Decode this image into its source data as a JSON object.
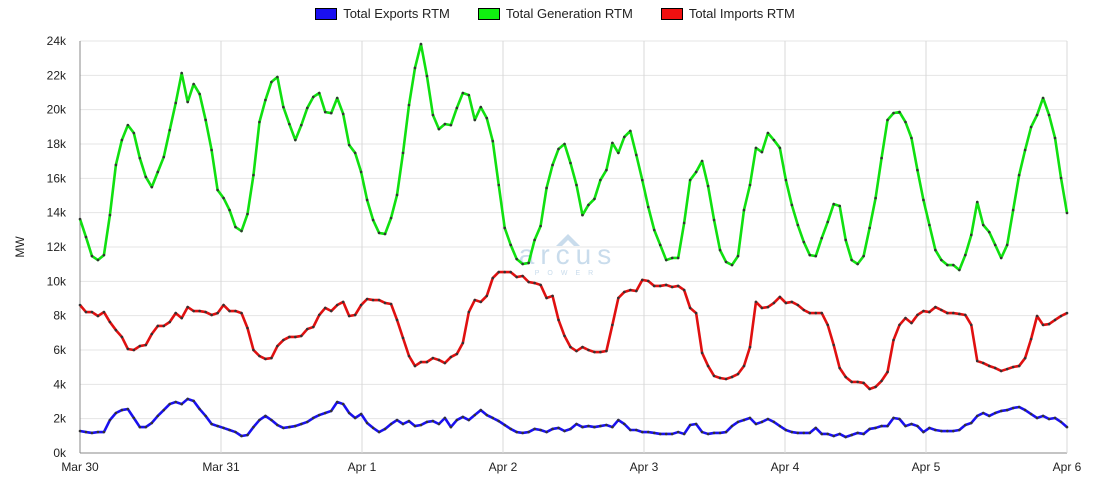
{
  "chart_data": {
    "type": "line",
    "title": "",
    "xlabel": "",
    "ylabel": "MW",
    "ylim": [
      0,
      24000
    ],
    "xlim_hours": [
      0,
      168
    ],
    "y_ticks": [
      "0k",
      "2k",
      "4k",
      "6k",
      "8k",
      "10k",
      "12k",
      "14k",
      "16k",
      "18k",
      "20k",
      "22k",
      "24k"
    ],
    "x_ticks": [
      "Mar 30",
      "Mar 31",
      "Apr 1",
      "Apr 2",
      "Apr 3",
      "Apr 4",
      "Apr 5",
      "Apr 6"
    ],
    "grid": true,
    "legend_position": "top-center",
    "x_interval": "hourly",
    "series": [
      {
        "name": "Total Exports RTM",
        "color": "#1a10f0",
        "values": [
          1280,
          1220,
          1170,
          1220,
          1220,
          1920,
          2330,
          2500,
          2560,
          2040,
          1510,
          1510,
          1750,
          2160,
          2500,
          2850,
          2970,
          2850,
          3150,
          3030,
          2560,
          2160,
          1690,
          1570,
          1460,
          1340,
          1220,
          990,
          1050,
          1510,
          1920,
          2160,
          1920,
          1630,
          1460,
          1510,
          1570,
          1690,
          1810,
          2040,
          2210,
          2330,
          2450,
          2970,
          2850,
          2330,
          2040,
          2270,
          1750,
          1460,
          1220,
          1400,
          1690,
          1920,
          1690,
          1860,
          1570,
          1630,
          1810,
          1860,
          1690,
          2040,
          1510,
          1920,
          2100,
          1920,
          2210,
          2500,
          2210,
          2040,
          1860,
          1630,
          1400,
          1220,
          1170,
          1220,
          1400,
          1340,
          1220,
          1400,
          1460,
          1280,
          1400,
          1690,
          1510,
          1570,
          1510,
          1570,
          1630,
          1510,
          1920,
          1690,
          1340,
          1340,
          1220,
          1220,
          1170,
          1110,
          1110,
          1110,
          1220,
          1110,
          1630,
          1690,
          1220,
          1110,
          1170,
          1170,
          1220,
          1570,
          1810,
          1920,
          2040,
          1690,
          1810,
          1980,
          1810,
          1570,
          1340,
          1220,
          1170,
          1170,
          1170,
          1460,
          1110,
          1110,
          990,
          1110,
          930,
          1050,
          1170,
          1110,
          1400,
          1460,
          1570,
          1570,
          2040,
          1980,
          1570,
          1690,
          1570,
          1220,
          1460,
          1340,
          1280,
          1280,
          1280,
          1340,
          1630,
          1750,
          2160,
          2330,
          2160,
          2330,
          2450,
          2500,
          2620,
          2680,
          2500,
          2270,
          2040,
          2160,
          1980,
          2040,
          1810,
          1510
        ]
      },
      {
        "name": "Total Generation RTM",
        "color": "#10e010",
        "values": [
          13630,
          12580,
          11470,
          11240,
          11530,
          13860,
          16780,
          18230,
          19100,
          18640,
          17180,
          16080,
          15490,
          16370,
          17240,
          18810,
          20390,
          22130,
          20450,
          21490,
          20910,
          19400,
          17650,
          15320,
          14850,
          14150,
          13160,
          12930,
          13920,
          16190,
          19280,
          20560,
          21610,
          21900,
          20150,
          19160,
          18230,
          19100,
          20100,
          20740,
          20970,
          19860,
          19800,
          20680,
          19750,
          17940,
          17480,
          16370,
          14740,
          13570,
          12820,
          12760,
          13690,
          15030,
          17480,
          20270,
          22430,
          23820,
          21960,
          19690,
          18870,
          19160,
          19100,
          20100,
          20970,
          20850,
          19400,
          20150,
          19510,
          18170,
          15610,
          13110,
          12120,
          11300,
          11010,
          11070,
          12410,
          13220,
          15440,
          16780,
          17710,
          18000,
          16890,
          15610,
          13860,
          14450,
          14800,
          15900,
          16480,
          18060,
          17480,
          18410,
          18760,
          17360,
          15900,
          14330,
          12990,
          12120,
          11240,
          11360,
          11360,
          13400,
          15900,
          16370,
          17010,
          15550,
          13570,
          11820,
          11130,
          10950,
          11470,
          14150,
          15610,
          17770,
          17530,
          18640,
          18230,
          17770,
          15900,
          14450,
          13280,
          12290,
          11530,
          11470,
          12520,
          13460,
          14500,
          14390,
          12410,
          11240,
          11010,
          11470,
          13110,
          14850,
          17180,
          19400,
          19800,
          19860,
          19280,
          18350,
          16480,
          14740,
          13280,
          11820,
          11240,
          10950,
          10950,
          10660,
          11530,
          12700,
          14620,
          13280,
          12870,
          12120,
          11360,
          12120,
          14150,
          16190,
          17650,
          18990,
          19690,
          20680,
          19690,
          18350,
          16020,
          13980
        ]
      },
      {
        "name": "Total Imports RTM",
        "color": "#e01010",
        "values": [
          8620,
          8210,
          8210,
          7980,
          8210,
          7630,
          7160,
          6760,
          6060,
          6000,
          6230,
          6290,
          6930,
          7400,
          7400,
          7630,
          8150,
          7860,
          8500,
          8270,
          8270,
          8210,
          8040,
          8150,
          8620,
          8270,
          8270,
          8150,
          7280,
          6000,
          5650,
          5480,
          5530,
          6230,
          6580,
          6760,
          6760,
          6820,
          7220,
          7340,
          8040,
          8450,
          8270,
          8620,
          8800,
          7980,
          8040,
          8620,
          8970,
          8910,
          8910,
          8740,
          8680,
          7750,
          6700,
          5650,
          5070,
          5300,
          5300,
          5530,
          5420,
          5240,
          5590,
          5770,
          6410,
          8210,
          8910,
          8800,
          9150,
          10190,
          10540,
          10540,
          10540,
          10250,
          10310,
          9960,
          9900,
          9790,
          9030,
          9150,
          7750,
          6820,
          6170,
          5940,
          6170,
          6000,
          5880,
          5880,
          5940,
          7460,
          9030,
          9380,
          9490,
          9440,
          10080,
          10020,
          9730,
          9730,
          9790,
          9670,
          9730,
          9490,
          8450,
          8150,
          5830,
          5070,
          4490,
          4370,
          4310,
          4430,
          4600,
          5070,
          6170,
          8800,
          8450,
          8500,
          8740,
          9090,
          8740,
          8800,
          8620,
          8330,
          8150,
          8150,
          8150,
          7460,
          6290,
          4950,
          4430,
          4140,
          4140,
          4080,
          3730,
          3850,
          4200,
          4720,
          6580,
          7460,
          7860,
          7570,
          8040,
          8270,
          8210,
          8500,
          8330,
          8150,
          8150,
          8100,
          8040,
          7460,
          5360,
          5240,
          5070,
          4950,
          4780,
          4890,
          5010,
          5070,
          5530,
          6640,
          7980,
          7460,
          7510,
          7750,
          7980,
          8150
        ]
      }
    ]
  },
  "watermark": {
    "brand": "arcus",
    "sub": "POWER"
  }
}
